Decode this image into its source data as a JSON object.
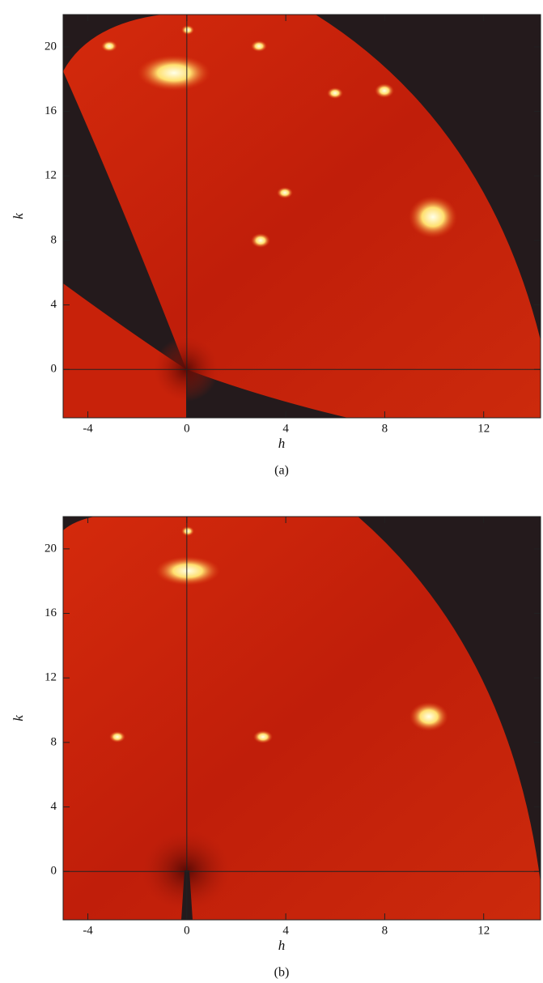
{
  "panels": [
    {
      "caption": "(a)",
      "xlabel": "h",
      "ylabel": "k",
      "xlim": [
        -5,
        14.3
      ],
      "ylim": [
        -3,
        22
      ],
      "xticks": [
        -4,
        0,
        4,
        8,
        12
      ],
      "yticks": [
        0,
        4,
        8,
        12,
        16,
        20
      ]
    },
    {
      "caption": "(b)",
      "xlabel": "h",
      "ylabel": "k",
      "xlim": [
        -5,
        14.3
      ],
      "ylim": [
        -3,
        22
      ],
      "xticks": [
        -4,
        0,
        4,
        8,
        12
      ],
      "yticks": [
        0,
        4,
        8,
        12,
        16,
        20
      ]
    }
  ]
}
